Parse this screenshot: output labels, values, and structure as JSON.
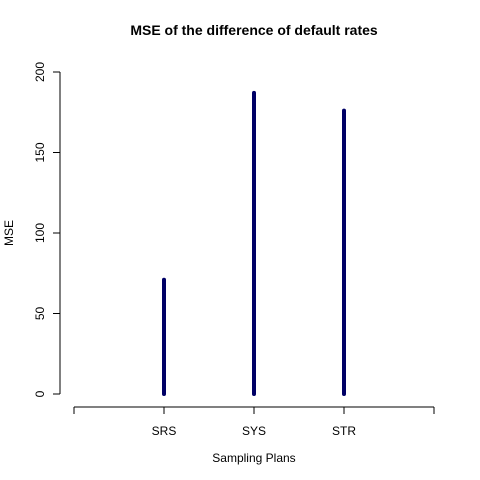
{
  "chart_data": {
    "type": "bar",
    "title": "MSE of the difference of default rates",
    "xlabel": "Sampling Plans",
    "ylabel": "MSE",
    "categories": [
      "SRS",
      "SYS",
      "STR"
    ],
    "values": [
      71,
      187,
      176
    ],
    "xlim": [
      0,
      4
    ],
    "ylim": [
      0,
      200
    ],
    "yticks": [
      0,
      50,
      100,
      150,
      200
    ],
    "grid": false,
    "colors": {
      "bar": "#000066"
    }
  }
}
